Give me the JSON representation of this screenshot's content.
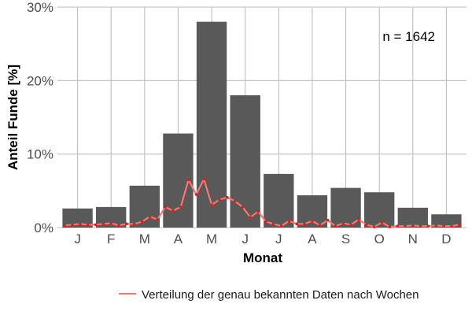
{
  "chart_data": {
    "type": "bar",
    "xlabel": "Monat",
    "ylabel": "Anteil Funde [%]",
    "categories": [
      "J",
      "F",
      "M",
      "A",
      "M",
      "J",
      "J",
      "A",
      "S",
      "O",
      "N",
      "D"
    ],
    "values": [
      2.6,
      2.8,
      5.7,
      12.8,
      28.0,
      18.0,
      7.3,
      4.4,
      5.4,
      4.8,
      2.7,
      1.8
    ],
    "ylim": [
      0,
      30
    ],
    "yticks": [
      0,
      10,
      20,
      30
    ],
    "ytick_labels": [
      "0%",
      "10%",
      "20%",
      "30%"
    ],
    "annotation": "n = 1642",
    "grid": true,
    "bar_color": "#595959",
    "weekly_series": {
      "name": "Verteilung der genau bekannten Daten nach Wochen",
      "color": "#f8766d",
      "values": [
        0.3,
        0.4,
        0.5,
        0.4,
        0.4,
        0.5,
        0.6,
        0.3,
        0.5,
        0.5,
        0.8,
        1.5,
        1.1,
        2.8,
        2.3,
        2.8,
        6.5,
        4.5,
        6.6,
        3.1,
        3.8,
        4.1,
        3.6,
        2.8,
        1.4,
        2.2,
        0.8,
        0.5,
        0.2,
        0.9,
        0.5,
        0.5,
        0.9,
        0.3,
        1.0,
        0.2,
        0.6,
        0.4,
        1.1,
        0.4,
        0.1,
        0.7,
        0.1,
        0.2,
        0.2,
        0.3,
        0.2,
        0.2,
        0.3,
        0.2,
        0.2,
        0.4
      ]
    },
    "legend_position": "bottom"
  }
}
